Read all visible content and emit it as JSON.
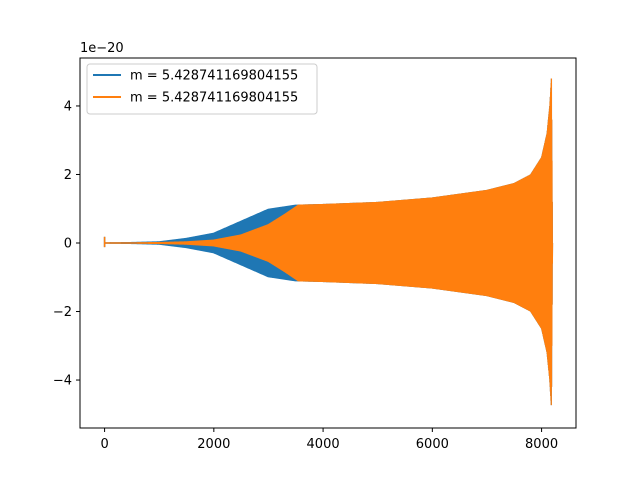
{
  "chart_data": {
    "type": "line",
    "title": "",
    "xlabel": "",
    "ylabel": "",
    "offset_text": "1e−20",
    "xlim": [
      -450,
      8630
    ],
    "ylim": [
      -5.4,
      5.4
    ],
    "x_ticks": [
      0,
      2000,
      4000,
      6000,
      8000
    ],
    "x_tick_labels": [
      "0",
      "2000",
      "4000",
      "6000",
      "8000"
    ],
    "y_ticks": [
      -4,
      -2,
      0,
      2,
      4
    ],
    "y_tick_labels": [
      "−4",
      "−2",
      "0",
      "2",
      "4"
    ],
    "grid": false,
    "legend_position": "upper-left",
    "colors": {
      "series_1": "#1f77b4",
      "series_2": "#ff7f0e"
    },
    "series": [
      {
        "name": "m = 5.428741169804155",
        "color": "#1f77b4",
        "description_units": "amplitude envelope (x, y) in units of 1e-20",
        "envelope": [
          [
            0,
            0.02
          ],
          [
            500,
            0.03
          ],
          [
            1000,
            0.05
          ],
          [
            1500,
            0.15
          ],
          [
            2000,
            0.3
          ],
          [
            2500,
            0.65
          ],
          [
            3000,
            1.0
          ],
          [
            3500,
            1.12
          ],
          [
            4000,
            1.14
          ],
          [
            5000,
            1.2
          ],
          [
            6000,
            1.33
          ],
          [
            7000,
            1.55
          ],
          [
            7500,
            1.75
          ],
          [
            7800,
            2.0
          ],
          [
            8000,
            2.5
          ],
          [
            8100,
            3.2
          ],
          [
            8150,
            4.0
          ],
          [
            8180,
            4.8
          ],
          [
            8200,
            0.0
          ]
        ]
      },
      {
        "name": "m = 5.428741169804155",
        "color": "#ff7f0e",
        "description_units": "amplitude envelope (x, y) in units of 1e-20",
        "envelope": [
          [
            0,
            0.02
          ],
          [
            500,
            0.02
          ],
          [
            1000,
            0.03
          ],
          [
            1500,
            0.05
          ],
          [
            2000,
            0.1
          ],
          [
            2500,
            0.25
          ],
          [
            3000,
            0.55
          ],
          [
            3300,
            0.85
          ],
          [
            3550,
            1.12
          ],
          [
            4000,
            1.14
          ],
          [
            5000,
            1.2
          ],
          [
            6000,
            1.33
          ],
          [
            7000,
            1.55
          ],
          [
            7500,
            1.75
          ],
          [
            7800,
            2.0
          ],
          [
            8000,
            2.5
          ],
          [
            8100,
            3.2
          ],
          [
            8150,
            4.0
          ],
          [
            8180,
            4.8
          ],
          [
            8200,
            0.0
          ]
        ]
      }
    ],
    "initial_spike": {
      "x": 0,
      "ymax": 0.18,
      "ymin": -0.12
    }
  }
}
